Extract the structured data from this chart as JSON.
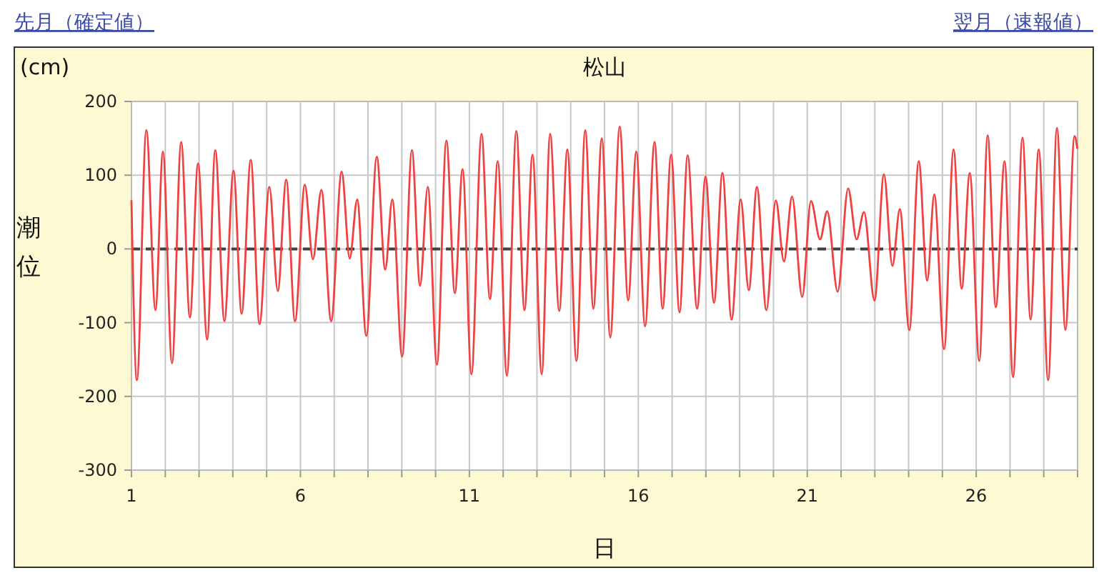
{
  "chart_data": {
    "type": "line",
    "title": "松山",
    "xlabel": "日",
    "ylabel": "潮位",
    "annotations": [
      "先月（確定値）",
      "翌月（速報値）",
      "(cm)"
    ],
    "xlim": [
      1,
      29
    ],
    "xticks": [
      1,
      {
        "value": 2,
        "label": null
      },
      {
        "value": 3,
        "label": null
      },
      {
        "value": 4,
        "label": null
      },
      {
        "value": 5,
        "label": null
      },
      6,
      {
        "value": 7,
        "label": null
      },
      {
        "value": 8,
        "label": null
      },
      {
        "value": 9,
        "label": null
      },
      {
        "value": 10,
        "label": null
      },
      11,
      {
        "value": 12,
        "label": null
      },
      {
        "value": 13,
        "label": null
      },
      {
        "value": 14,
        "label": null
      },
      {
        "value": 15,
        "label": null
      },
      16,
      {
        "value": 17,
        "label": null
      },
      {
        "value": 18,
        "label": null
      },
      {
        "value": 19,
        "label": null
      },
      {
        "value": 20,
        "label": null
      },
      21,
      {
        "value": 22,
        "label": null
      },
      {
        "value": 23,
        "label": null
      },
      {
        "value": 24,
        "label": null
      },
      {
        "value": 25,
        "label": null
      },
      26,
      {
        "value": 27,
        "label": null
      },
      {
        "value": 28,
        "label": null
      },
      {
        "value": 29,
        "label": null
      }
    ],
    "ylim": [
      -300,
      200
    ],
    "yticks": [
      200,
      100,
      0,
      -100,
      -200,
      -300
    ],
    "grid": true,
    "marker": "none",
    "line_style": "solid",
    "ref_lines": [
      {
        "axis": "y",
        "value": 0,
        "label": null,
        "color": "#404040",
        "line_style": "dashed"
      }
    ],
    "series": [
      {
        "color": "#f04040",
        "x": [
          1.0,
          1.16,
          1.44,
          1.71,
          1.93,
          2.2,
          2.47,
          2.73,
          2.97,
          3.24,
          3.48,
          3.75,
          4.02,
          4.26,
          4.53,
          4.79,
          5.08,
          5.33,
          5.58,
          5.84,
          6.13,
          6.37,
          6.62,
          6.91,
          7.22,
          7.46,
          7.68,
          7.95,
          8.26,
          8.51,
          8.72,
          9.01,
          9.3,
          9.54,
          9.77,
          10.04,
          10.32,
          10.57,
          10.8,
          11.06,
          11.36,
          11.61,
          11.84,
          12.11,
          12.39,
          12.63,
          12.87,
          13.14,
          13.39,
          13.66,
          13.9,
          14.17,
          14.43,
          14.67,
          14.92,
          15.17,
          15.45,
          15.7,
          15.94,
          16.2,
          16.48,
          16.72,
          16.97,
          17.22,
          17.46,
          17.74,
          17.99,
          18.24,
          18.49,
          18.76,
          19.03,
          19.27,
          19.51,
          19.79,
          20.07,
          20.31,
          20.55,
          20.85,
          21.11,
          21.38,
          21.59,
          21.9,
          22.21,
          22.46,
          22.68,
          22.99,
          23.27,
          23.52,
          23.74,
          24.02,
          24.3,
          24.55,
          24.76,
          25.05,
          25.33,
          25.57,
          25.81,
          26.09,
          26.34,
          26.58,
          26.84,
          27.09,
          27.37,
          27.61,
          27.85,
          28.13,
          28.39,
          28.64,
          28.91,
          28.99
        ],
        "values": [
          65,
          -178,
          161,
          -83,
          132,
          -155,
          145,
          -93,
          116,
          -123,
          134,
          -98,
          106,
          -88,
          121,
          -102,
          84,
          -57,
          94,
          -98,
          87,
          -14,
          80,
          -98,
          105,
          -13,
          67,
          -118,
          125,
          -28,
          67,
          -146,
          134,
          -50,
          84,
          -157,
          147,
          -60,
          108,
          -170,
          156,
          -68,
          119,
          -172,
          160,
          -83,
          128,
          -170,
          156,
          -84,
          135,
          -152,
          161,
          -81,
          150,
          -120,
          166,
          -70,
          132,
          -105,
          145,
          -81,
          128,
          -86,
          127,
          -81,
          98,
          -73,
          103,
          -96,
          67,
          -56,
          84,
          -83,
          66,
          -17,
          71,
          -65,
          65,
          13,
          51,
          -58,
          82,
          13,
          50,
          -70,
          101,
          -23,
          54,
          -110,
          119,
          -43,
          74,
          -136,
          135,
          -54,
          103,
          -152,
          154,
          -79,
          119,
          -174,
          151,
          -96,
          135,
          -178,
          164,
          -110,
          153,
          137
        ]
      }
    ]
  }
}
